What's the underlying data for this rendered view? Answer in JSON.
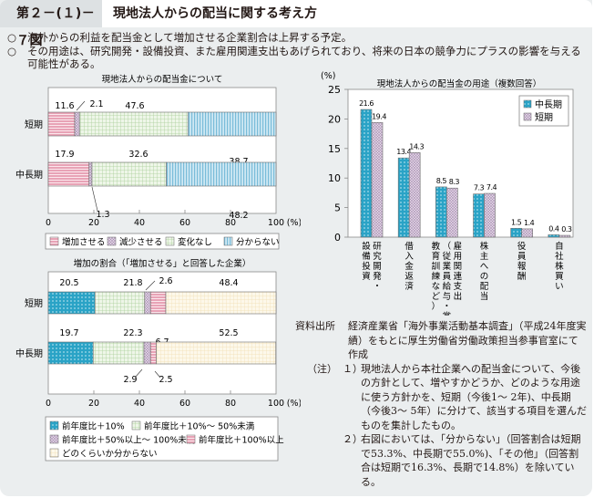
{
  "header": {
    "figure_number": "第２－(１)－７図",
    "title": "現地法人からの配当に関する考え方"
  },
  "summary": [
    {
      "bullet": "○",
      "text": "海外からの利益を配当金として増加させる企業割合は上昇する予定。"
    },
    {
      "bullet": "○",
      "text": "その用途は、研究開発・設備投資、また雇用関連支出もあげられており、将来の日本の競争力にプラスの影響を与える可能性がある。"
    }
  ],
  "colors": {
    "increase_pink": "#e8a3b6",
    "decrease_purple": "#d9c7df",
    "nochange_green": "#cfe3c4",
    "unknown_blue": "#a9d6ea",
    "plus10_teal": "#2aa3c6",
    "unknown_cream": "#f7efd2",
    "background": "#ebeeef"
  },
  "chart_data": [
    {
      "type": "bar",
      "orientation": "horizontal-stacked",
      "title": "現地法人からの配当金について",
      "categories": [
        "短期",
        "中長期"
      ],
      "series": [
        {
          "name": "増加させる",
          "values": [
            11.6,
            17.9
          ]
        },
        {
          "name": "減少させる",
          "values": [
            2.1,
            1.3
          ]
        },
        {
          "name": "変化なし",
          "values": [
            47.6,
            32.6
          ]
        },
        {
          "name": "分からない",
          "values": [
            38.7,
            48.2
          ]
        }
      ],
      "xlim": [
        0,
        100
      ],
      "xticks": [
        "0",
        "20",
        "40",
        "60",
        "80",
        "100"
      ],
      "xunit": "(%)",
      "legend": "bottom"
    },
    {
      "type": "bar",
      "orientation": "horizontal-stacked",
      "title": "増加の割合（「増加させる」と回答した企業）",
      "categories": [
        "短期",
        "中長期"
      ],
      "series": [
        {
          "name": "前年度比＋10%",
          "values": [
            20.5,
            19.7
          ]
        },
        {
          "name": "前年度比＋10%～ 50%未満",
          "values": [
            21.8,
            22.3
          ]
        },
        {
          "name": "前年度比＋50%以上～ 100%未満",
          "values": [
            2.6,
            2.9
          ]
        },
        {
          "name": "前年度比＋100%以上",
          "values": [
            6.7,
            2.5
          ]
        },
        {
          "name": "どのくらいか分からない",
          "values": [
            48.4,
            52.5
          ]
        }
      ],
      "xlim": [
        0,
        100
      ],
      "xticks": [
        "0",
        "20",
        "40",
        "60",
        "80",
        "100"
      ],
      "xunit": "(%)",
      "legend": "bottom"
    },
    {
      "type": "bar",
      "orientation": "vertical-grouped",
      "title": "現地法人からの配当金の用途（複数回答）",
      "categories": [
        "研究開発・設備投資",
        "借入金返済",
        "雇用関連支出（従業員給与・賞与、教育訓練など）",
        "株主への配当",
        "役員報酬",
        "自社株買い"
      ],
      "category_lines": [
        [
          "研究開発・",
          "設備投資"
        ],
        [
          "借入金返済"
        ],
        [
          "雇用関連支出",
          "（従業員給与・賞与、",
          "教育訓練など）"
        ],
        [
          "株主への配当"
        ],
        [
          "役員報酬"
        ],
        [
          "自社株買い"
        ]
      ],
      "series": [
        {
          "name": "中長期",
          "values": [
            21.6,
            13.4,
            8.5,
            7.3,
            1.5,
            0.4
          ]
        },
        {
          "name": "短期",
          "values": [
            19.4,
            14.3,
            8.3,
            7.4,
            1.4,
            0.3
          ]
        }
      ],
      "ylim": [
        0,
        25
      ],
      "yticks": [
        "0",
        "5",
        "10",
        "15",
        "20",
        "25"
      ],
      "yunit": "(%)",
      "legend": "top-right"
    }
  ],
  "source": {
    "label": "資料出所",
    "text": "経済産業省「海外事業活動基本調査」（平成24年度実績）をもとに厚生労働省労働政策担当参事官室にて作成"
  },
  "notes": {
    "label": "（注）",
    "items": [
      {
        "num": "１）",
        "text": "現地法人から本社企業への配当金について、今後の方針として、増やすかどうか、どのような用途に使う方針かを、短期（今後1～ 2年)、中長期（今後3～ 5年）に分けて、該当する項目を選んだものを集計したもの。"
      },
      {
        "num": "２）",
        "text": "右図においては、「分からない」（回答割合は短期で53.3%、中長期で55.0%)、「その他」（回答割合は短期で16.3%、長期で14.8%）を除いている。"
      }
    ]
  }
}
